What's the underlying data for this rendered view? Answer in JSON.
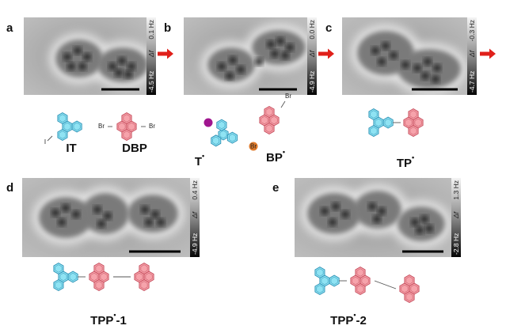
{
  "panels": [
    {
      "letter": "a",
      "colorbar": {
        "top": "0.1 Hz",
        "label": "Δf",
        "bottom": "-4.5 Hz"
      }
    },
    {
      "letter": "b",
      "colorbar": {
        "top": "0.0 Hz",
        "label": "Δf",
        "bottom": "-4.9 Hz"
      }
    },
    {
      "letter": "c",
      "colorbar": {
        "top": "-0.3 Hz",
        "label": "Δf",
        "bottom": "-4.7 Hz"
      }
    },
    {
      "letter": "d",
      "colorbar": {
        "top": "0.4 Hz",
        "label": "Δf",
        "bottom": "-4.9 Hz"
      }
    },
    {
      "letter": "e",
      "colorbar": {
        "top": "1.3 Hz",
        "label": "Δf",
        "bottom": "-2.8 Hz"
      }
    }
  ],
  "molecules": [
    {
      "base": "IT"
    },
    {
      "base": "DBP"
    },
    {
      "base": "T",
      "sup": "•"
    },
    {
      "base": "BP",
      "sup": "•"
    },
    {
      "base": "TP",
      "sup": "•"
    },
    {
      "base": "TPP",
      "sup": "•",
      "suffix": "-1"
    },
    {
      "base": "TPP",
      "sup": "•",
      "suffix": "-2"
    }
  ],
  "atoms": [
    "I",
    "Br",
    "Br",
    "Br",
    "Br"
  ]
}
